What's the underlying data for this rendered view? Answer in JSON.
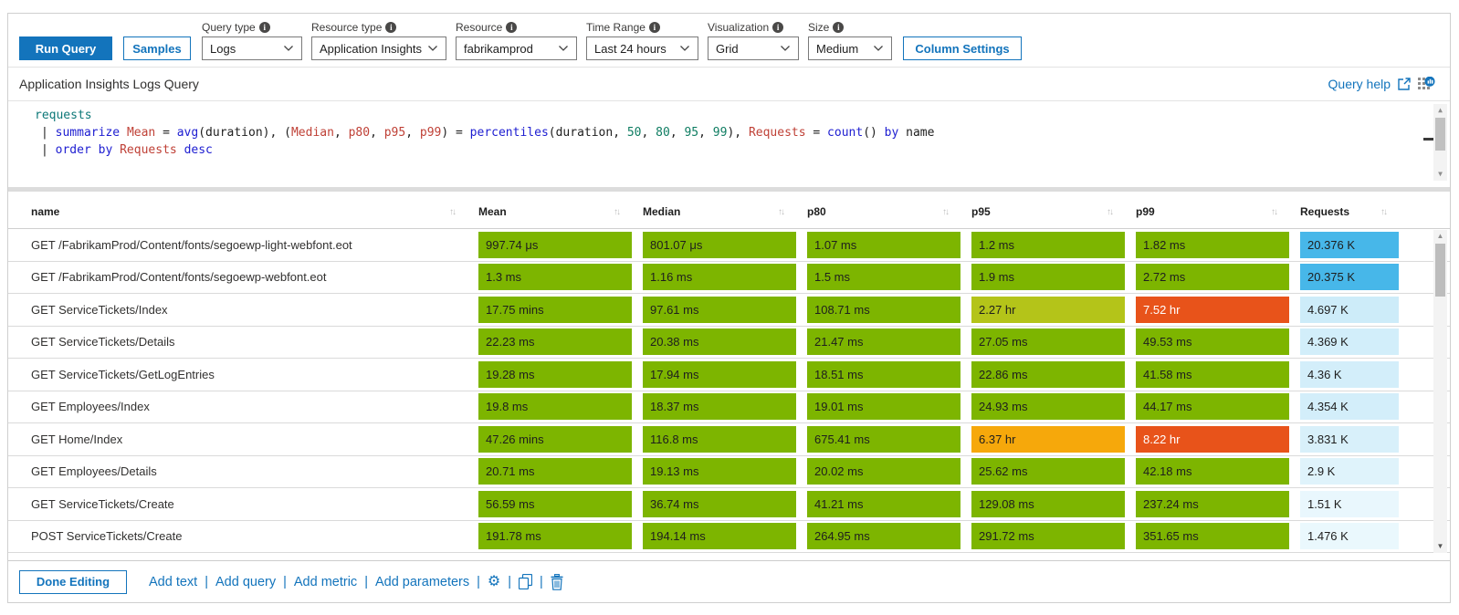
{
  "toolbar": {
    "run_query_label": "Run Query",
    "samples_label": "Samples",
    "column_settings_label": "Column Settings",
    "dropdowns": [
      {
        "label": "Query type",
        "value": "Logs"
      },
      {
        "label": "Resource type",
        "value": "Application Insights"
      },
      {
        "label": "Resource",
        "value": "fabrikamprod"
      },
      {
        "label": "Time Range",
        "value": "Last 24 hours"
      },
      {
        "label": "Visualization",
        "value": "Grid"
      },
      {
        "label": "Size",
        "value": "Medium"
      }
    ]
  },
  "header": {
    "title": "Application Insights Logs Query",
    "query_help_label": "Query help"
  },
  "query": {
    "lines": [
      [
        {
          "t": "requests",
          "c": "tbl"
        }
      ],
      [
        {
          "t": "| ",
          "c": "plain"
        },
        {
          "t": "summarize ",
          "c": "kw"
        },
        {
          "t": "Mean ",
          "c": "col"
        },
        {
          "t": "= ",
          "c": "plain"
        },
        {
          "t": "avg",
          "c": "kw"
        },
        {
          "t": "(duration), (",
          "c": "plain"
        },
        {
          "t": "Median",
          "c": "col"
        },
        {
          "t": ", ",
          "c": "plain"
        },
        {
          "t": "p80",
          "c": "col"
        },
        {
          "t": ", ",
          "c": "plain"
        },
        {
          "t": "p95",
          "c": "col"
        },
        {
          "t": ", ",
          "c": "plain"
        },
        {
          "t": "p99",
          "c": "col"
        },
        {
          "t": ") = ",
          "c": "plain"
        },
        {
          "t": "percentiles",
          "c": "kw"
        },
        {
          "t": "(duration, ",
          "c": "plain"
        },
        {
          "t": "50",
          "c": "num"
        },
        {
          "t": ", ",
          "c": "plain"
        },
        {
          "t": "80",
          "c": "num"
        },
        {
          "t": ", ",
          "c": "plain"
        },
        {
          "t": "95",
          "c": "num"
        },
        {
          "t": ", ",
          "c": "plain"
        },
        {
          "t": "99",
          "c": "num"
        },
        {
          "t": "), ",
          "c": "plain"
        },
        {
          "t": "Requests ",
          "c": "col"
        },
        {
          "t": "= ",
          "c": "plain"
        },
        {
          "t": "count",
          "c": "kw"
        },
        {
          "t": "() ",
          "c": "plain"
        },
        {
          "t": "by ",
          "c": "kw"
        },
        {
          "t": "name",
          "c": "plain"
        }
      ],
      [
        {
          "t": "| ",
          "c": "plain"
        },
        {
          "t": "order by ",
          "c": "kw"
        },
        {
          "t": "Requests ",
          "c": "col"
        },
        {
          "t": "desc",
          "c": "kw"
        }
      ]
    ]
  },
  "table": {
    "columns": [
      "name",
      "Mean",
      "Median",
      "p80",
      "p95",
      "p99",
      "Requests"
    ],
    "rows": [
      {
        "name": "GET /FabrikamProd/Content/fonts/segoewp-light-webfont.eot",
        "cells": [
          {
            "text": "997.74 μs",
            "bg": "#7db500",
            "fg": "#1e1e1e"
          },
          {
            "text": "801.07 μs",
            "bg": "#7db500",
            "fg": "#1e1e1e"
          },
          {
            "text": "1.07 ms",
            "bg": "#7db500",
            "fg": "#1e1e1e"
          },
          {
            "text": "1.2 ms",
            "bg": "#7db500",
            "fg": "#1e1e1e"
          },
          {
            "text": "1.82 ms",
            "bg": "#7db500",
            "fg": "#1e1e1e"
          },
          {
            "text": "20.376 K",
            "bg": "#47b7e9",
            "fg": "#1e1e1e"
          }
        ]
      },
      {
        "name": "GET /FabrikamProd/Content/fonts/segoewp-webfont.eot",
        "cells": [
          {
            "text": "1.3 ms",
            "bg": "#7db500",
            "fg": "#1e1e1e"
          },
          {
            "text": "1.16 ms",
            "bg": "#7db500",
            "fg": "#1e1e1e"
          },
          {
            "text": "1.5 ms",
            "bg": "#7db500",
            "fg": "#1e1e1e"
          },
          {
            "text": "1.9 ms",
            "bg": "#7db500",
            "fg": "#1e1e1e"
          },
          {
            "text": "2.72 ms",
            "bg": "#7db500",
            "fg": "#1e1e1e"
          },
          {
            "text": "20.375 K",
            "bg": "#47b7e9",
            "fg": "#1e1e1e"
          }
        ]
      },
      {
        "name": "GET ServiceTickets/Index",
        "cells": [
          {
            "text": "17.75 mins",
            "bg": "#7db500",
            "fg": "#1e1e1e"
          },
          {
            "text": "97.61 ms",
            "bg": "#7db500",
            "fg": "#1e1e1e"
          },
          {
            "text": "108.71 ms",
            "bg": "#7db500",
            "fg": "#1e1e1e"
          },
          {
            "text": "2.27 hr",
            "bg": "#b4c419",
            "fg": "#1e1e1e"
          },
          {
            "text": "7.52 hr",
            "bg": "#e8531a",
            "fg": "#ffffff"
          },
          {
            "text": "4.697 K",
            "bg": "#cdecf9",
            "fg": "#1e1e1e"
          }
        ]
      },
      {
        "name": "GET ServiceTickets/Details",
        "cells": [
          {
            "text": "22.23 ms",
            "bg": "#7db500",
            "fg": "#1e1e1e"
          },
          {
            "text": "20.38 ms",
            "bg": "#7db500",
            "fg": "#1e1e1e"
          },
          {
            "text": "21.47 ms",
            "bg": "#7db500",
            "fg": "#1e1e1e"
          },
          {
            "text": "27.05 ms",
            "bg": "#7db500",
            "fg": "#1e1e1e"
          },
          {
            "text": "49.53 ms",
            "bg": "#7db500",
            "fg": "#1e1e1e"
          },
          {
            "text": "4.369 K",
            "bg": "#d2eefa",
            "fg": "#1e1e1e"
          }
        ]
      },
      {
        "name": "GET ServiceTickets/GetLogEntries",
        "cells": [
          {
            "text": "19.28 ms",
            "bg": "#7db500",
            "fg": "#1e1e1e"
          },
          {
            "text": "17.94 ms",
            "bg": "#7db500",
            "fg": "#1e1e1e"
          },
          {
            "text": "18.51 ms",
            "bg": "#7db500",
            "fg": "#1e1e1e"
          },
          {
            "text": "22.86 ms",
            "bg": "#7db500",
            "fg": "#1e1e1e"
          },
          {
            "text": "41.58 ms",
            "bg": "#7db500",
            "fg": "#1e1e1e"
          },
          {
            "text": "4.36 K",
            "bg": "#d3eefa",
            "fg": "#1e1e1e"
          }
        ]
      },
      {
        "name": "GET Employees/Index",
        "cells": [
          {
            "text": "19.8 ms",
            "bg": "#7db500",
            "fg": "#1e1e1e"
          },
          {
            "text": "18.37 ms",
            "bg": "#7db500",
            "fg": "#1e1e1e"
          },
          {
            "text": "19.01 ms",
            "bg": "#7db500",
            "fg": "#1e1e1e"
          },
          {
            "text": "24.93 ms",
            "bg": "#7db500",
            "fg": "#1e1e1e"
          },
          {
            "text": "44.17 ms",
            "bg": "#7db500",
            "fg": "#1e1e1e"
          },
          {
            "text": "4.354 K",
            "bg": "#d3eefa",
            "fg": "#1e1e1e"
          }
        ]
      },
      {
        "name": "GET Home/Index",
        "cells": [
          {
            "text": "47.26 mins",
            "bg": "#7db500",
            "fg": "#1e1e1e"
          },
          {
            "text": "116.8 ms",
            "bg": "#7db500",
            "fg": "#1e1e1e"
          },
          {
            "text": "675.41 ms",
            "bg": "#7db500",
            "fg": "#1e1e1e"
          },
          {
            "text": "6.37 hr",
            "bg": "#f6a80b",
            "fg": "#1e1e1e"
          },
          {
            "text": "8.22 hr",
            "bg": "#e8531a",
            "fg": "#ffffff"
          },
          {
            "text": "3.831 K",
            "bg": "#d8f0fa",
            "fg": "#1e1e1e"
          }
        ]
      },
      {
        "name": "GET Employees/Details",
        "cells": [
          {
            "text": "20.71 ms",
            "bg": "#7db500",
            "fg": "#1e1e1e"
          },
          {
            "text": "19.13 ms",
            "bg": "#7db500",
            "fg": "#1e1e1e"
          },
          {
            "text": "20.02 ms",
            "bg": "#7db500",
            "fg": "#1e1e1e"
          },
          {
            "text": "25.62 ms",
            "bg": "#7db500",
            "fg": "#1e1e1e"
          },
          {
            "text": "42.18 ms",
            "bg": "#7db500",
            "fg": "#1e1e1e"
          },
          {
            "text": "2.9 K",
            "bg": "#dff3fb",
            "fg": "#1e1e1e"
          }
        ]
      },
      {
        "name": "GET ServiceTickets/Create",
        "cells": [
          {
            "text": "56.59 ms",
            "bg": "#7db500",
            "fg": "#1e1e1e"
          },
          {
            "text": "36.74 ms",
            "bg": "#7db500",
            "fg": "#1e1e1e"
          },
          {
            "text": "41.21 ms",
            "bg": "#7db500",
            "fg": "#1e1e1e"
          },
          {
            "text": "129.08 ms",
            "bg": "#7db500",
            "fg": "#1e1e1e"
          },
          {
            "text": "237.24 ms",
            "bg": "#7db500",
            "fg": "#1e1e1e"
          },
          {
            "text": "1.51 K",
            "bg": "#e9f7fd",
            "fg": "#1e1e1e"
          }
        ]
      },
      {
        "name": "POST ServiceTickets/Create",
        "cells": [
          {
            "text": "191.78 ms",
            "bg": "#7db500",
            "fg": "#1e1e1e"
          },
          {
            "text": "194.14 ms",
            "bg": "#7db500",
            "fg": "#1e1e1e"
          },
          {
            "text": "264.95 ms",
            "bg": "#7db500",
            "fg": "#1e1e1e"
          },
          {
            "text": "291.72 ms",
            "bg": "#7db500",
            "fg": "#1e1e1e"
          },
          {
            "text": "351.65 ms",
            "bg": "#7db500",
            "fg": "#1e1e1e"
          },
          {
            "text": "1.476 K",
            "bg": "#eaf8fd",
            "fg": "#1e1e1e"
          }
        ]
      }
    ]
  },
  "footer": {
    "done_editing_label": "Done Editing",
    "links": [
      "Add text",
      "Add query",
      "Add metric",
      "Add parameters"
    ]
  },
  "icons": {
    "info": "i",
    "sort": "↑↓",
    "gear": "⚙",
    "scroll_up": "▲",
    "scroll_down": "▼"
  },
  "colors": {
    "accent_blue": "#1374bc",
    "green": "#7db500",
    "yellow_green": "#b4c419",
    "amber": "#f6a80b",
    "orange_red": "#e8531a",
    "requests_blue": "#47b7e9"
  }
}
